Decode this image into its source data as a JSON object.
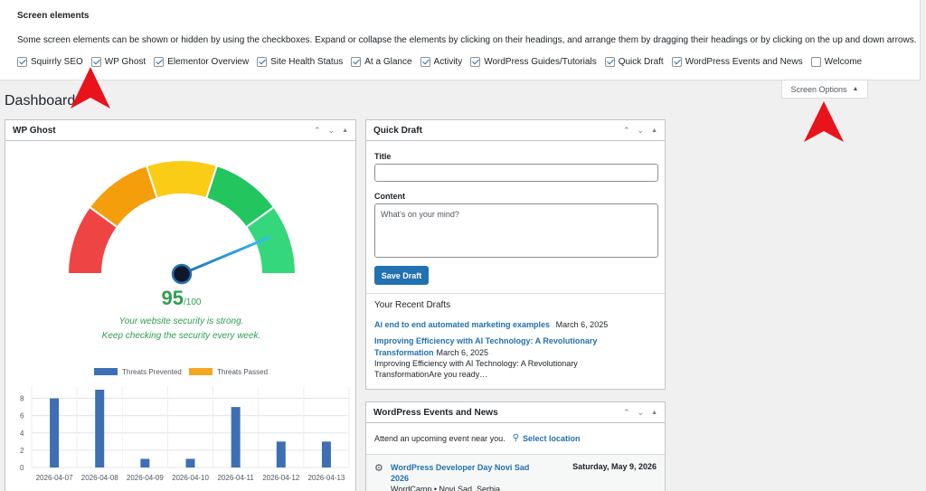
{
  "screen_options": {
    "title": "Screen elements",
    "description": "Some screen elements can be shown or hidden by using the checkboxes. Expand or collapse the elements by clicking on their headings, and arrange them by dragging their headings or by clicking on the up and down arrows.",
    "checkboxes": [
      {
        "label": "Squirrly SEO",
        "checked": true
      },
      {
        "label": "WP Ghost",
        "checked": true
      },
      {
        "label": "Elementor Overview",
        "checked": true
      },
      {
        "label": "Site Health Status",
        "checked": true
      },
      {
        "label": "At a Glance",
        "checked": true
      },
      {
        "label": "Activity",
        "checked": true
      },
      {
        "label": "WordPress Guides/Tutorials",
        "checked": true
      },
      {
        "label": "Quick Draft",
        "checked": true
      },
      {
        "label": "WordPress Events and News",
        "checked": true
      },
      {
        "label": "Welcome",
        "checked": false
      }
    ],
    "tab_label": "Screen Options"
  },
  "page_title": "Dashboard",
  "wp_ghost": {
    "title": "WP Ghost",
    "score": "95",
    "score_max": "/100",
    "message_line1": "Your website security is strong.",
    "message_line2": "Keep checking the security every week.",
    "gauge_value": 95,
    "colors": {
      "red": "#ef4444",
      "orange": "#f59e0b",
      "yellow": "#facc15",
      "green": "#22c55e",
      "light_green": "#34d77b",
      "score": "#2e9e4f"
    }
  },
  "chart_data": {
    "type": "bar",
    "categories": [
      "2026-04-07",
      "2026-04-08",
      "2026-04-09",
      "2026-04-10",
      "2026-04-11",
      "2026-04-12",
      "2026-04-13"
    ],
    "series": [
      {
        "name": "Threats Prevented",
        "values": [
          8,
          9,
          1,
          1,
          7,
          3,
          3
        ],
        "color": "#3d6fb4"
      },
      {
        "name": "Threats Passed",
        "values": [
          0,
          0,
          0,
          0,
          0,
          0,
          0
        ],
        "color": "#f6a623"
      }
    ],
    "yticks": [
      "0",
      "2",
      "4",
      "6",
      "8"
    ],
    "ylim": [
      0,
      9
    ],
    "legend": "top"
  },
  "quick_draft": {
    "title": "Quick Draft",
    "title_label": "Title",
    "title_value": "",
    "content_label": "Content",
    "content_placeholder": "What’s on your mind?",
    "save_label": "Save Draft",
    "recent_heading": "Your Recent Drafts",
    "drafts": [
      {
        "title": "Ai end to end automated marketing examples",
        "date": "March 6, 2025",
        "excerpt": ""
      },
      {
        "title_line1": "Improving Efficiency with AI Technology: A Revolutionary",
        "title_line2": "Transformation",
        "date": "March 6, 2025",
        "excerpt_line1": "Improving Efficiency with AI Technology: A Revolutionary",
        "excerpt_line2": "TransformationAre you ready…"
      }
    ]
  },
  "events": {
    "title": "WordPress Events and News",
    "intro": "Attend an upcoming event near you.",
    "select_location": "Select location",
    "items": [
      {
        "name_line1": "WordPress Developer Day Novi Sad",
        "name_line2": "2026",
        "date": "Saturday, May 9, 2026",
        "meta": "WordCamp • Novi Sad, Serbia"
      }
    ]
  }
}
